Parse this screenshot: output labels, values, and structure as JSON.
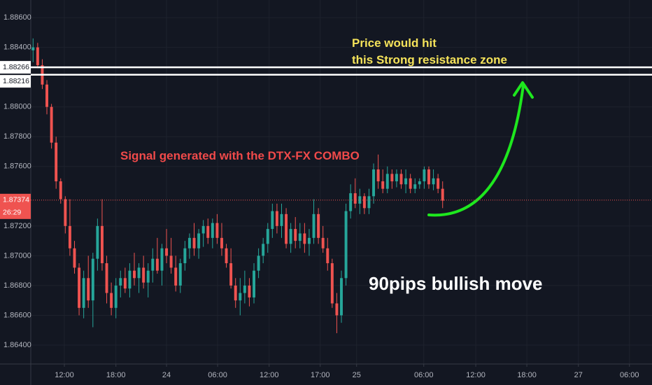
{
  "chart_data": {
    "type": "candlestick",
    "up_color": "#26a69a",
    "down_color": "#ef5350",
    "grid": true,
    "ylim": [
      1.86273,
      1.88718
    ],
    "yticks": [
      {
        "value": 1.886,
        "label": "1.88600"
      },
      {
        "value": 1.884,
        "label": "1.88400"
      },
      {
        "value": 1.88,
        "label": "1.88000"
      },
      {
        "value": 1.878,
        "label": "1.87800"
      },
      {
        "value": 1.876,
        "label": "1.87600"
      },
      {
        "value": 1.872,
        "label": "1.87200"
      },
      {
        "value": 1.87,
        "label": "1.87000"
      },
      {
        "value": 1.868,
        "label": "1.86800"
      },
      {
        "value": 1.866,
        "label": "1.86600"
      },
      {
        "value": 1.864,
        "label": "1.86400"
      }
    ],
    "xlim": [
      0.5,
      135.5
    ],
    "xticks": [
      {
        "value": 7.8,
        "label": "12:00"
      },
      {
        "value": 19,
        "label": "18:00"
      },
      {
        "value": 30,
        "label": "24"
      },
      {
        "value": 41.1,
        "label": "06:00"
      },
      {
        "value": 52.3,
        "label": "12:00"
      },
      {
        "value": 63.4,
        "label": "17:00"
      },
      {
        "value": 71.3,
        "label": "25"
      },
      {
        "value": 85.9,
        "label": "06:00"
      },
      {
        "value": 97.2,
        "label": "12:00"
      },
      {
        "value": 108.3,
        "label": "18:00"
      },
      {
        "value": 119.5,
        "label": "27"
      },
      {
        "value": 130.6,
        "label": "06:00"
      }
    ],
    "x": [
      1,
      2,
      3,
      4,
      5,
      6,
      7,
      8,
      9,
      10,
      11,
      12,
      13,
      14,
      15,
      16,
      17,
      18,
      19,
      20,
      21,
      22,
      23,
      24,
      25,
      26,
      27,
      28,
      29,
      30,
      31,
      32,
      33,
      34,
      35,
      36,
      37,
      38,
      39,
      40,
      41,
      42,
      43,
      44,
      45,
      46,
      47,
      48,
      49,
      50,
      51,
      52,
      53,
      54,
      55,
      56,
      57,
      58,
      59,
      60,
      61,
      62,
      63,
      64,
      65,
      66,
      67,
      68,
      69,
      70,
      71,
      72,
      73,
      74,
      75,
      76,
      77,
      78,
      79,
      80,
      81,
      82,
      83,
      84,
      85,
      86,
      87,
      88,
      89,
      90
    ],
    "open": [
      1.8838,
      1.884,
      1.8828,
      1.8815,
      1.88,
      1.8776,
      1.875,
      1.8738,
      1.872,
      1.8705,
      1.8692,
      1.8665,
      1.8685,
      1.867,
      1.8698,
      1.872,
      1.8695,
      1.8675,
      1.8665,
      1.868,
      1.8685,
      1.8678,
      1.869,
      1.8685,
      1.8692,
      1.8682,
      1.869,
      1.8698,
      1.869,
      1.8705,
      1.87,
      1.8692,
      1.868,
      1.8695,
      1.8705,
      1.8712,
      1.8705,
      1.8715,
      1.872,
      1.8712,
      1.8722,
      1.8712,
      1.8705,
      1.8695,
      1.868,
      1.867,
      1.8675,
      1.868,
      1.8672,
      1.869,
      1.87,
      1.8708,
      1.8718,
      1.873,
      1.872,
      1.8728,
      1.8708,
      1.8718,
      1.871,
      1.8715,
      1.8708,
      1.8712,
      1.8728,
      1.8712,
      1.8705,
      1.8695,
      1.8668,
      1.866,
      1.8685,
      1.873,
      1.8742,
      1.8735,
      1.874,
      1.8732,
      1.874,
      1.8758,
      1.875,
      1.8745,
      1.8755,
      1.875,
      1.8755,
      1.8748,
      1.8752,
      1.8745,
      1.8748,
      1.875,
      1.8758,
      1.8748,
      1.8752,
      1.8745
    ],
    "high": [
      1.8846,
      1.8843,
      1.8832,
      1.8818,
      1.8802,
      1.878,
      1.8752,
      1.874,
      1.8738,
      1.871,
      1.8695,
      1.869,
      1.87,
      1.8702,
      1.8725,
      1.8738,
      1.87,
      1.8682,
      1.8685,
      1.869,
      1.8692,
      1.8695,
      1.8702,
      1.8695,
      1.87,
      1.8695,
      1.8705,
      1.8712,
      1.8708,
      1.8718,
      1.8712,
      1.87,
      1.8698,
      1.871,
      1.8715,
      1.8722,
      1.8718,
      1.8724,
      1.8725,
      1.8725,
      1.8728,
      1.8722,
      1.8708,
      1.8705,
      1.8685,
      1.8685,
      1.869,
      1.8685,
      1.8695,
      1.8705,
      1.8712,
      1.8722,
      1.8735,
      1.8735,
      1.8735,
      1.8732,
      1.8722,
      1.8726,
      1.8722,
      1.8722,
      1.8718,
      1.8738,
      1.8732,
      1.872,
      1.8712,
      1.8698,
      1.8675,
      1.869,
      1.8735,
      1.8748,
      1.8752,
      1.8745,
      1.8742,
      1.8745,
      1.8762,
      1.8768,
      1.8758,
      1.876,
      1.8758,
      1.8758,
      1.8758,
      1.8758,
      1.8755,
      1.8752,
      1.8752,
      1.876,
      1.876,
      1.8758,
      1.8755,
      1.875
    ],
    "low": [
      1.883,
      1.8826,
      1.8812,
      1.8795,
      1.8772,
      1.8745,
      1.8735,
      1.8715,
      1.87,
      1.8688,
      1.866,
      1.8658,
      1.8665,
      1.8652,
      1.869,
      1.869,
      1.8668,
      1.866,
      1.8658,
      1.8672,
      1.8675,
      1.8672,
      1.868,
      1.8675,
      1.8678,
      1.8672,
      1.8682,
      1.8688,
      1.868,
      1.8695,
      1.8688,
      1.8676,
      1.8675,
      1.869,
      1.8698,
      1.87,
      1.8698,
      1.8706,
      1.8708,
      1.8705,
      1.8708,
      1.87,
      1.8692,
      1.8678,
      1.8665,
      1.866,
      1.8668,
      1.8666,
      1.8668,
      1.8685,
      1.8695,
      1.8702,
      1.8712,
      1.8715,
      1.8712,
      1.8705,
      1.8702,
      1.8705,
      1.8705,
      1.8702,
      1.87,
      1.8708,
      1.8708,
      1.8702,
      1.869,
      1.8665,
      1.8648,
      1.8655,
      1.868,
      1.8725,
      1.8732,
      1.8728,
      1.8728,
      1.8728,
      1.8735,
      1.8745,
      1.8742,
      1.8742,
      1.8745,
      1.8746,
      1.8745,
      1.8742,
      1.8742,
      1.8742,
      1.8745,
      1.8745,
      1.8745,
      1.8744,
      1.8742,
      1.8732
    ],
    "close": [
      1.884,
      1.8828,
      1.8815,
      1.88,
      1.8776,
      1.875,
      1.8738,
      1.872,
      1.8705,
      1.8692,
      1.8665,
      1.8685,
      1.867,
      1.8698,
      1.872,
      1.8695,
      1.8675,
      1.8665,
      1.868,
      1.8685,
      1.8678,
      1.869,
      1.8685,
      1.8692,
      1.8682,
      1.869,
      1.8698,
      1.869,
      1.8705,
      1.87,
      1.8692,
      1.868,
      1.8695,
      1.8705,
      1.8712,
      1.8705,
      1.8715,
      1.872,
      1.8712,
      1.8722,
      1.8712,
      1.8705,
      1.8695,
      1.868,
      1.867,
      1.8675,
      1.868,
      1.8672,
      1.869,
      1.87,
      1.8708,
      1.8718,
      1.873,
      1.872,
      1.8728,
      1.8708,
      1.8718,
      1.871,
      1.8715,
      1.8708,
      1.8712,
      1.8728,
      1.8712,
      1.8705,
      1.8695,
      1.8668,
      1.866,
      1.8685,
      1.873,
      1.8742,
      1.8735,
      1.874,
      1.8732,
      1.874,
      1.8758,
      1.875,
      1.8745,
      1.8755,
      1.875,
      1.8755,
      1.8748,
      1.8752,
      1.8745,
      1.8748,
      1.875,
      1.8758,
      1.8748,
      1.8752,
      1.8745,
      1.8737
    ],
    "resistance_lines": [
      1.88266,
      1.88216
    ],
    "last_price": 1.87374,
    "countdown": "26:29",
    "annotations": [
      "Price would hit",
      "this Strong resistance zone",
      "Signal generated with the DTX-FX COMBO",
      "90pips bullish move"
    ]
  }
}
